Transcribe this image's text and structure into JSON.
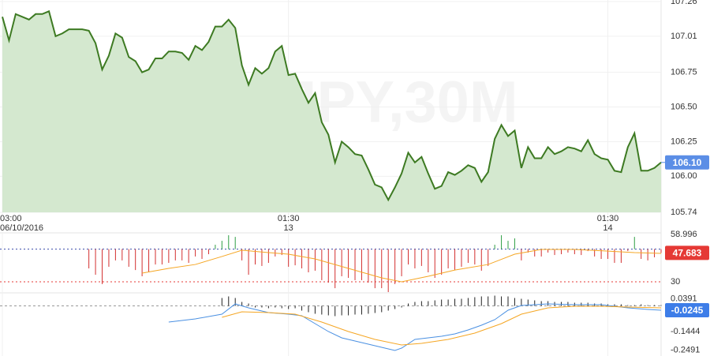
{
  "chart_data": [
    {
      "type": "area",
      "watermark": "USD/JPY,30M",
      "color": "#3d7a22",
      "fill": "#d4e8cf",
      "values": [
        107.15,
        106.98,
        107.17,
        107.15,
        107.13,
        107.17,
        107.17,
        107.19,
        107.01,
        107.03,
        107.06,
        107.06,
        107.06,
        107.05,
        106.96,
        106.77,
        106.87,
        107.03,
        107.0,
        106.86,
        106.83,
        106.75,
        106.77,
        106.85,
        106.85,
        106.9,
        106.9,
        106.89,
        106.84,
        106.94,
        106.91,
        106.97,
        107.08,
        107.08,
        107.13,
        107.07,
        106.8,
        106.66,
        106.78,
        106.74,
        106.78,
        106.9,
        106.94,
        106.73,
        106.74,
        106.63,
        106.53,
        106.6,
        106.39,
        106.3,
        106.1,
        106.25,
        106.21,
        106.16,
        106.15,
        106.05,
        105.94,
        105.92,
        105.83,
        105.92,
        106.02,
        106.17,
        106.1,
        106.14,
        106.02,
        105.91,
        105.93,
        106.03,
        106.01,
        106.04,
        106.08,
        106.06,
        105.96,
        106.03,
        106.27,
        106.37,
        106.29,
        106.33,
        106.06,
        106.21,
        106.13,
        106.13,
        106.21,
        106.16,
        106.18,
        106.21,
        106.2,
        106.18,
        106.26,
        106.16,
        106.13,
        106.12,
        106.04,
        106.03,
        106.21,
        106.31,
        106.04,
        106.04,
        106.06,
        106.1
      ],
      "ylim": [
        105.74,
        107.26
      ],
      "yticks": [
        107.26,
        107.01,
        106.75,
        {
          "value": 106.5,
          "label": "106.50"
        },
        106.25,
        {
          "value": 106,
          "label": "106.00"
        },
        105.74
      ],
      "xticks": [
        {
          "value": 0,
          "label": "03:00",
          "sublabel": "06/10/2016"
        },
        {
          "value": 43,
          "label": "01:30",
          "sublabel": "13"
        },
        {
          "value": 91,
          "label": "01:30",
          "sublabel": "14"
        }
      ],
      "current": {
        "value": 106.1,
        "label": "106.10"
      },
      "current_color": "#5b8ee6",
      "grid": true
    },
    {
      "type": "oscillator",
      "baseline": 50,
      "up_color": "#2e9e44",
      "down_color": "#d32f2f",
      "values": [
        null,
        null,
        null,
        null,
        null,
        null,
        null,
        null,
        null,
        null,
        null,
        null,
        null,
        38.2,
        34.3,
        28.6,
        39.2,
        43.1,
        43.1,
        39.2,
        37.2,
        33.4,
        35.8,
        40.6,
        40.6,
        41.6,
        43.1,
        43.1,
        41.6,
        45.5,
        44.0,
        46.9,
        52.7,
        55.1,
        58.5,
        57.5,
        43.1,
        34.3,
        40.6,
        39.7,
        41.6,
        45.5,
        46.4,
        39.2,
        40.1,
        38.2,
        35.8,
        36.8,
        31.0,
        29.5,
        26.1,
        33.4,
        32.4,
        31.0,
        31.0,
        29.5,
        26.1,
        26.1,
        23.7,
        28.6,
        33.4,
        40.6,
        38.2,
        39.7,
        35.8,
        32.4,
        34.3,
        38.2,
        37.2,
        39.2,
        41.6,
        40.6,
        36.8,
        39.7,
        52.7,
        58.5,
        55.1,
        56.6,
        43.1,
        47.9,
        45.5,
        45.5,
        47.9,
        46.4,
        46.9,
        47.9,
        46.9,
        46.4,
        48.8,
        45.5,
        44.0,
        44.0,
        41.6,
        41.6,
        48.8,
        57.5,
        44.0,
        43.1,
        45.0,
        47.683
      ],
      "series": [
        {
          "color": "#f5a623",
          "x": [
            21,
            25,
            29,
            33,
            36,
            40,
            43,
            47,
            52,
            57,
            60,
            64,
            68,
            73,
            77,
            81,
            86,
            91,
            95,
            99
          ],
          "values": [
            35.3,
            38.2,
            40.6,
            45.5,
            49.3,
            47.9,
            46.9,
            44.0,
            38.2,
            32.4,
            30.0,
            33.4,
            37.2,
            40.6,
            46.9,
            49.8,
            49.8,
            48.8,
            47.9,
            47.4
          ]
        }
      ],
      "hlines": [
        {
          "value": 50,
          "color": "#3949ab"
        },
        {
          "value": 30,
          "color": "#e53935"
        }
      ],
      "ylim": [
        22.75,
        58.996
      ],
      "yticks": [
        58.996,
        30
      ],
      "current_color": "#e53935"
    },
    {
      "type": "macd",
      "baseline": 0,
      "hist_color": "#222222",
      "baseline_color": "#999999",
      "values": [
        null,
        null,
        null,
        null,
        null,
        null,
        null,
        null,
        null,
        null,
        null,
        null,
        null,
        null,
        null,
        null,
        null,
        null,
        null,
        null,
        null,
        null,
        null,
        null,
        null,
        null,
        null,
        null,
        null,
        null,
        null,
        null,
        null,
        0.0444,
        0.0533,
        0.0444,
        0.0222,
        0.0133,
        -0.0089,
        -0.0089,
        -0.0133,
        -0.0089,
        -0.0133,
        -0.0178,
        -0.0133,
        -0.0267,
        -0.0356,
        -0.0444,
        -0.0489,
        -0.0533,
        -0.0578,
        -0.0533,
        -0.0533,
        -0.0489,
        -0.0489,
        -0.0444,
        -0.04,
        -0.0356,
        -0.0267,
        -0.0178,
        -0.0089,
        0.0133,
        0.0222,
        0.0267,
        0.0267,
        0.0311,
        0.0356,
        0.0356,
        0.04,
        0.04,
        0.0444,
        0.0489,
        0.0533,
        0.0533,
        0.0578,
        0.0533,
        0.0533,
        0.0444,
        0.04,
        0.0356,
        0.0311,
        0.0267,
        0.0267,
        0.0222,
        0.0222,
        0.0222,
        0.0178,
        0.0178,
        0.0178,
        0.0133,
        0.0133,
        0.0089,
        0.0089,
        0.0089,
        0.0044,
        0.0044,
        0.0089,
        0.0044,
        0.0044,
        0.0044
      ],
      "series": [
        {
          "color": "#4a90e2",
          "x": [
            25,
            29,
            33,
            35,
            37,
            40,
            43,
            45,
            47,
            49,
            51,
            53,
            55,
            57,
            59,
            60,
            62,
            64,
            66,
            68,
            70,
            72,
            74,
            76,
            78,
            82,
            86,
            90,
            94,
            97,
            99
          ],
          "values": [
            -0.0911,
            -0.0733,
            -0.0466,
            0.0112,
            -0.0111,
            -0.0377,
            -0.0466,
            -0.0555,
            -0.1,
            -0.1444,
            -0.18,
            -0.1977,
            -0.2155,
            -0.2333,
            -0.2511,
            -0.2377,
            -0.1888,
            -0.18,
            -0.1711,
            -0.1577,
            -0.1355,
            -0.1088,
            -0.0777,
            -0.0244,
            0.0023,
            0.0112,
            0.0067,
            0.0067,
            -0.0111,
            -0.02,
            -0.0245
          ]
        },
        {
          "color": "#f5a623",
          "x": [
            33,
            36,
            40,
            44,
            48,
            52,
            56,
            60,
            63,
            67,
            71,
            75,
            78,
            82,
            86,
            90,
            94,
            99
          ],
          "values": [
            -0.0644,
            -0.0333,
            -0.0377,
            -0.0466,
            -0.0911,
            -0.1444,
            -0.1888,
            -0.22,
            -0.2111,
            -0.1888,
            -0.1533,
            -0.1,
            -0.0466,
            -0.0111,
            -0.0022,
            -0.0022,
            -0.0066,
            -0.0111
          ]
        }
      ],
      "ylim": [
        -0.2822,
        0.0689
      ],
      "yticks": [
        0.0391,
        -0.1444,
        -0.2491
      ],
      "current_color": "#3d7de8"
    }
  ]
}
